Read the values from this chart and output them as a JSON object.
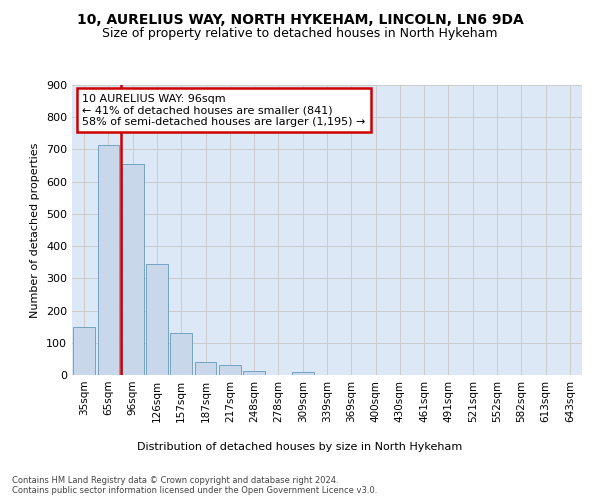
{
  "title_line1": "10, AURELIUS WAY, NORTH HYKEHAM, LINCOLN, LN6 9DA",
  "title_line2": "Size of property relative to detached houses in North Hykeham",
  "xlabel": "Distribution of detached houses by size in North Hykeham",
  "ylabel": "Number of detached properties",
  "footnote": "Contains HM Land Registry data © Crown copyright and database right 2024.\nContains public sector information licensed under the Open Government Licence v3.0.",
  "bin_labels": [
    "35sqm",
    "65sqm",
    "96sqm",
    "126sqm",
    "157sqm",
    "187sqm",
    "217sqm",
    "248sqm",
    "278sqm",
    "309sqm",
    "339sqm",
    "369sqm",
    "400sqm",
    "430sqm",
    "461sqm",
    "491sqm",
    "521sqm",
    "552sqm",
    "582sqm",
    "613sqm",
    "643sqm"
  ],
  "bar_values": [
    150,
    715,
    655,
    343,
    130,
    40,
    30,
    13,
    0,
    9,
    0,
    0,
    0,
    0,
    0,
    0,
    0,
    0,
    0,
    0,
    0
  ],
  "bar_color": "#c8d8ea",
  "bar_edge_color": "#6699bb",
  "annotation_text": "10 AURELIUS WAY: 96sqm\n← 41% of detached houses are smaller (841)\n58% of semi-detached houses are larger (1,195) →",
  "annotation_box_color": "#ffffff",
  "annotation_border_color": "#cc0000",
  "vline_color": "#cc0000",
  "ylim": [
    0,
    900
  ],
  "yticks": [
    0,
    100,
    200,
    300,
    400,
    500,
    600,
    700,
    800,
    900
  ],
  "grid_color": "#cccccc",
  "background_color": "#ffffff",
  "plot_background": "#dce8f5",
  "title_fontsize": 10,
  "subtitle_fontsize": 9
}
